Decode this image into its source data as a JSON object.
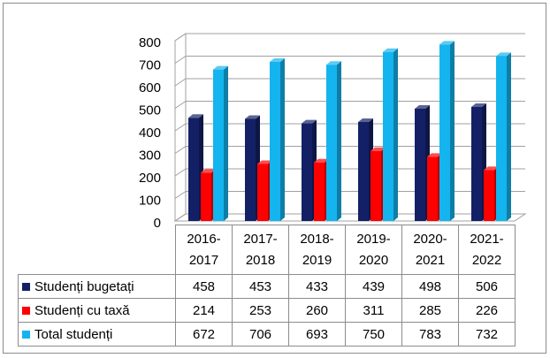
{
  "chart_data": {
    "type": "bar",
    "categories": [
      "2016-2017",
      "2017-2018",
      "2018-2019",
      "2019-2020",
      "2020-2021",
      "2021-2022"
    ],
    "series": [
      {
        "name": "Studenți bugetați",
        "color": "#142066",
        "values": [
          458,
          453,
          433,
          439,
          498,
          506
        ]
      },
      {
        "name": "Studenți cu taxă",
        "color": "#ff0000",
        "values": [
          214,
          253,
          260,
          311,
          285,
          226
        ]
      },
      {
        "name": "Total studenți",
        "color": "#14b4ee",
        "values": [
          672,
          706,
          693,
          750,
          783,
          732
        ]
      }
    ],
    "ylim": [
      0,
      800
    ],
    "yticks": [
      0,
      100,
      200,
      300,
      400,
      500,
      600,
      700,
      800
    ],
    "grid": true
  }
}
